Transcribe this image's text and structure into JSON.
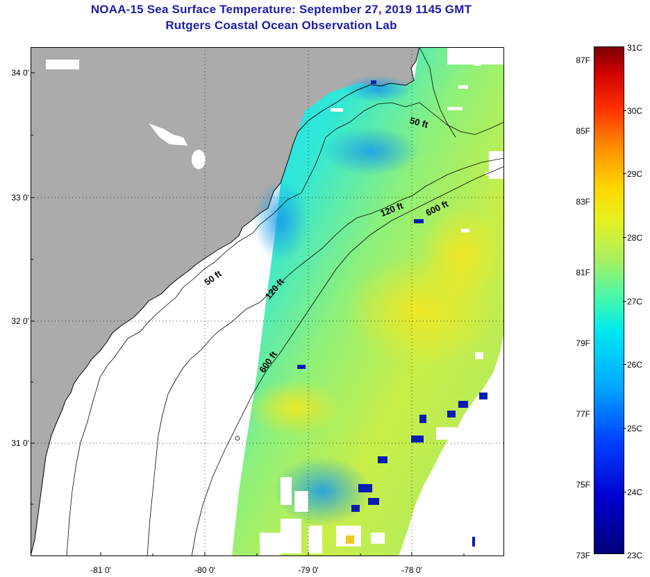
{
  "title": {
    "line1": "NOAA-15 Sea Surface Temperature:  September 27, 2019 1145 GMT",
    "line2": "Rutgers Coastal Ocean Observation Lab"
  },
  "map": {
    "lat_labels": [
      "34 0'",
      "33 0'",
      "32 0'",
      "31 0'"
    ],
    "lon_labels": [
      "-81 0'",
      "-80 0'",
      "-79 0'",
      "-78 0'"
    ],
    "contour_labels": {
      "inner_50": "50 ft",
      "outer_50": "50 ft",
      "inner_120": "120 ft",
      "outer_120": "120 ft",
      "inner_600": "600 ft",
      "outer_600": "600 ft"
    },
    "colors": {
      "land": "#ababab",
      "nodata": "#ffffff",
      "coast": "#000000"
    }
  },
  "colorbar": {
    "celsius_labels": [
      "31C",
      "30C",
      "29C",
      "28C",
      "27C",
      "26C",
      "25C",
      "24C",
      "23C"
    ],
    "fahrenheit_labels": [
      "87F",
      "85F",
      "83F",
      "81F",
      "79F",
      "77F",
      "75F",
      "73F"
    ],
    "stops": [
      "#00007a",
      "#0000d0",
      "#0040ff",
      "#00a8ff",
      "#00e8f0",
      "#40f8b0",
      "#a8f060",
      "#e8f020",
      "#ffd800",
      "#ff9000",
      "#ff3000",
      "#d00000",
      "#7a0000"
    ]
  }
}
